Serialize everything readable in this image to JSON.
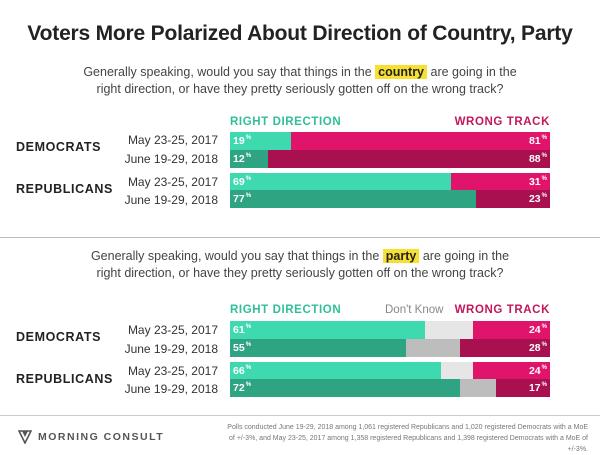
{
  "title": "Voters More Polarized About Direction of Country, Party",
  "chart_data": [
    {
      "type": "bar",
      "question_pre": "Generally speaking, would you say that things in the",
      "question_highlight": "country",
      "question_line1_post": "are going in the",
      "question_line2": "right direction, or have they pretty seriously gotten off on the wrong track?",
      "legend": {
        "right": "RIGHT DIRECTION",
        "wrong": "WRONG TRACK"
      },
      "groups": [
        {
          "name": "DEMOCRATS",
          "rows": [
            {
              "label": "May 23-25, 2017",
              "right": 19,
              "dont_know": 0,
              "wrong": 81
            },
            {
              "label": "June 19-29, 2018",
              "right": 12,
              "dont_know": 0,
              "wrong": 88
            }
          ]
        },
        {
          "name": "REPUBLICANS",
          "rows": [
            {
              "label": "May 23-25, 2017",
              "right": 69,
              "dont_know": 0,
              "wrong": 31
            },
            {
              "label": "June 19-29, 2018",
              "right": 77,
              "dont_know": 0,
              "wrong": 23
            }
          ]
        }
      ]
    },
    {
      "type": "bar",
      "question_pre": "Generally speaking, would you say that things in the",
      "question_highlight": "party",
      "question_line1_post": "are going in the",
      "question_line2": "right direction, or have they pretty seriously gotten off on the wrong track?",
      "legend": {
        "right": "RIGHT DIRECTION",
        "dont_know": "Don't Know",
        "wrong": "WRONG TRACK"
      },
      "groups": [
        {
          "name": "DEMOCRATS",
          "rows": [
            {
              "label": "May 23-25, 2017",
              "right": 61,
              "dont_know": 15,
              "wrong": 24
            },
            {
              "label": "June 19-29, 2018",
              "right": 55,
              "dont_know": 17,
              "wrong": 28
            }
          ]
        },
        {
          "name": "REPUBLICANS",
          "rows": [
            {
              "label": "May 23-25, 2017",
              "right": 66,
              "dont_know": 10,
              "wrong": 24
            },
            {
              "label": "June 19-29, 2018",
              "right": 72,
              "dont_know": 11,
              "wrong": 17
            }
          ]
        }
      ]
    }
  ],
  "colors": {
    "right_2017": "#3fd9b0",
    "right_2018": "#2fa483",
    "wrong_2017": "#e0146b",
    "wrong_2018": "#a8104f",
    "dk_2017": "#e6e6e6",
    "dk_2018": "#bdbdbd"
  },
  "percent_sign": "%",
  "footer": {
    "brand": "MORNING CONSULT",
    "note": "Polls conducted June 19-29, 2018 among 1,061 registered Republicans and 1,020 registered Democrats with a MoE of +/-3%, and May 23-25, 2017 among 1,358 registered Republicans and 1,398 registered Democrats with a MoE of +/-3%."
  }
}
